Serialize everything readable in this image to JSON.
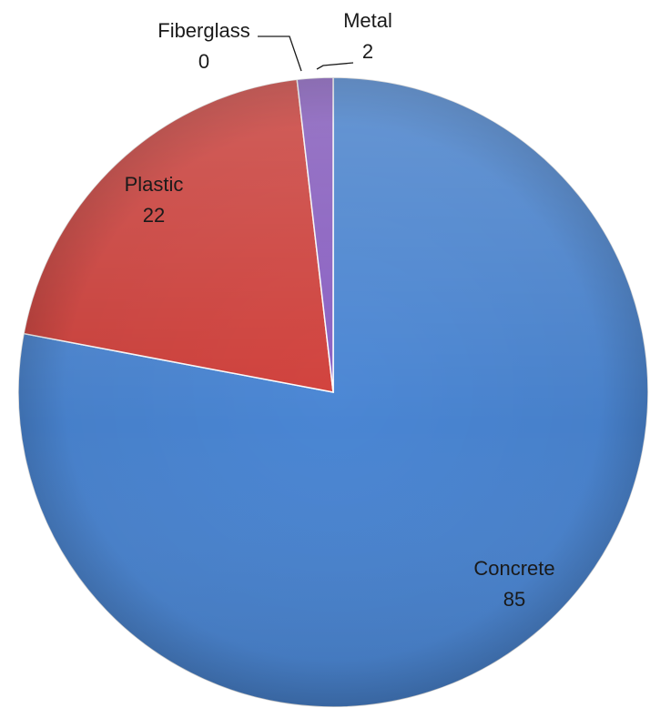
{
  "chart_data": {
    "type": "pie",
    "title": "",
    "slices": [
      {
        "label": "Concrete",
        "value": 85,
        "color": "#4a86d4"
      },
      {
        "label": "Plastic",
        "value": 22,
        "color": "#d1403b"
      },
      {
        "label": "Fiberglass",
        "value": 0,
        "color": "#7a9a3c"
      },
      {
        "label": "Metal",
        "value": 2,
        "color": "#8a5fc4"
      }
    ],
    "start_angle_deg": 0,
    "direction": "clockwise",
    "data_labels": true,
    "legend": "none"
  }
}
